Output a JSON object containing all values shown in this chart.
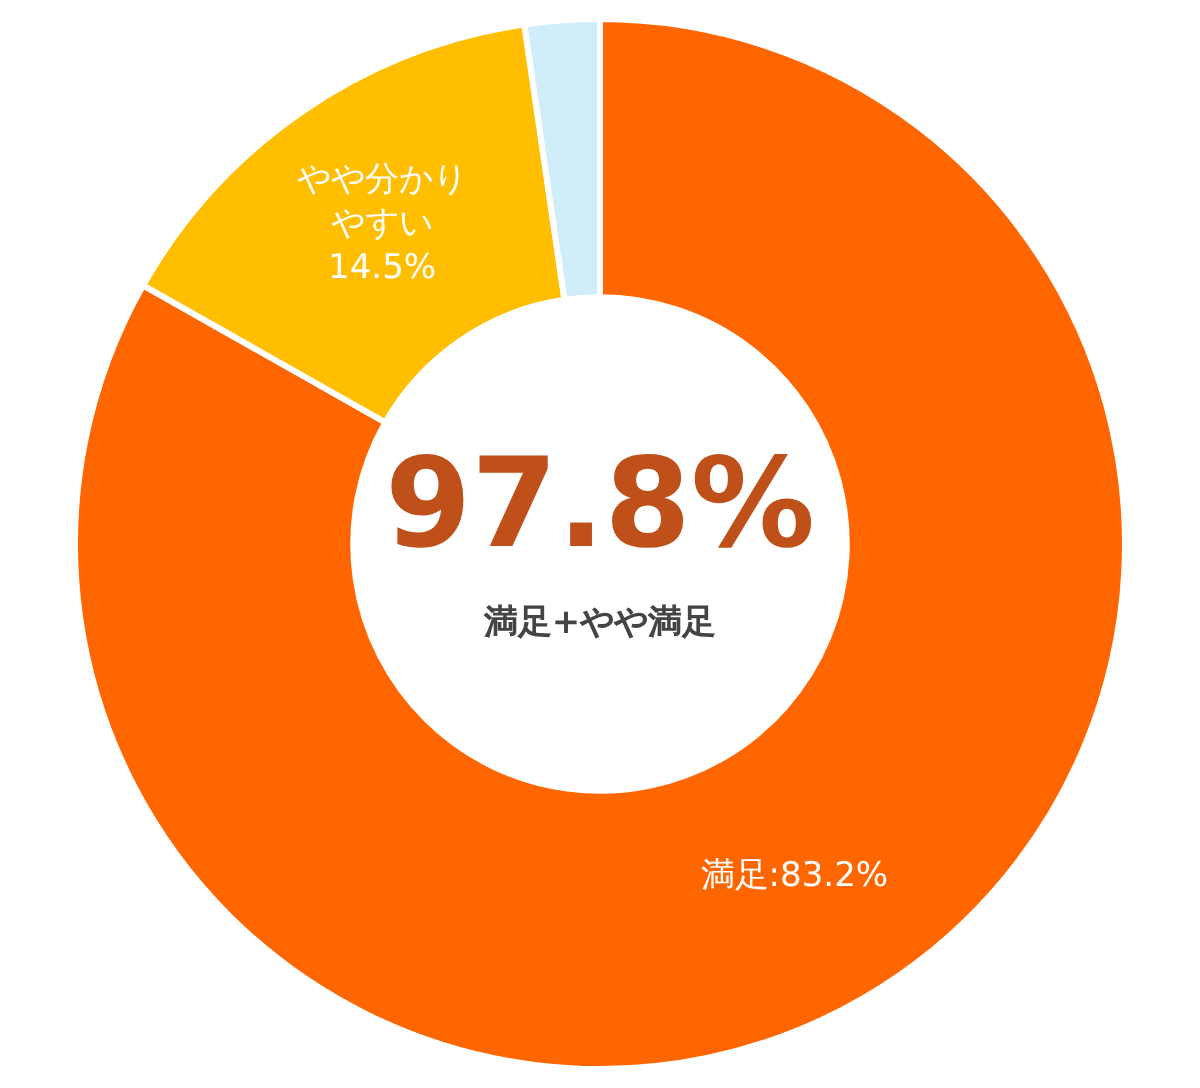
{
  "chart_data": {
    "type": "donut",
    "categories": [
      "満足",
      "やや分かりやすい",
      null
    ],
    "values": [
      83.2,
      14.5,
      2.3
    ],
    "colors": [
      "#ff6600",
      "#ffbf00",
      "#cfeefa"
    ],
    "value_labels": [
      ":83.2%",
      "14.5%",
      null
    ],
    "annotations": [
      "97.8%",
      "満足+やや満足"
    ],
    "legend": false
  }
}
